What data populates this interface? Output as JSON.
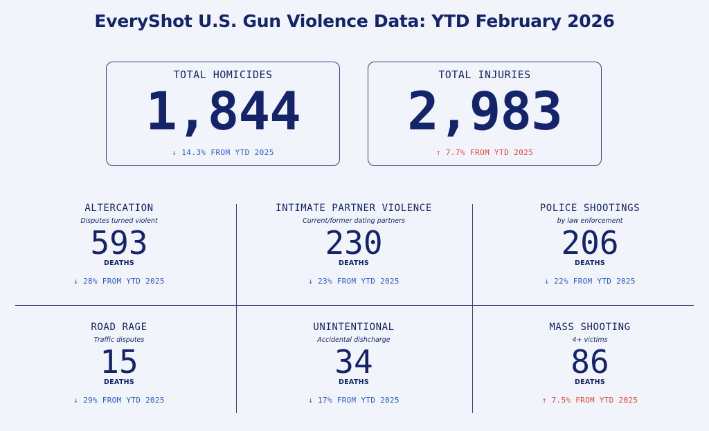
{
  "title": "EveryShot U.S. Gun Violence Data: YTD February 2026",
  "colors": {
    "background": "#f1f4fa",
    "navy": "#14246b",
    "decrease": "#2b5bd6",
    "increase": "#e8473a"
  },
  "totals": [
    {
      "label": "TOTAL HOMICIDES",
      "value": "1,844",
      "change": "↓ 14.3% FROM YTD 2025",
      "direction": "down"
    },
    {
      "label": "TOTAL INJURIES",
      "value": "2,983",
      "change": "↑ 7.7% FROM YTD 2025",
      "direction": "up"
    }
  ],
  "categories": [
    {
      "label": "ALTERCATION",
      "subtitle": "Disputes turned violent",
      "value": "593",
      "unit": "DEATHS",
      "change": "↓ 28% FROM YTD 2025",
      "direction": "down"
    },
    {
      "label": "INTIMATE PARTNER VIOLENCE",
      "subtitle": "Current/former dating partners",
      "value": "230",
      "unit": "DEATHS",
      "change": "↓ 23% FROM YTD 2025",
      "direction": "down"
    },
    {
      "label": "POLICE SHOOTINGS",
      "subtitle": "by law enforcement",
      "value": "206",
      "unit": "DEATHS",
      "change": "↓ 22% FROM YTD 2025",
      "direction": "down"
    },
    {
      "label": "ROAD RAGE",
      "subtitle": "Traffic disputes",
      "value": "15",
      "unit": "DEATHS",
      "change": "↓ 29% FROM YTD 2025",
      "direction": "down"
    },
    {
      "label": "UNINTENTIONAL",
      "subtitle": "Accidental dishcharge",
      "value": "34",
      "unit": "DEATHS",
      "change": "↓ 17% FROM YTD 2025",
      "direction": "down"
    },
    {
      "label": "MASS SHOOTING",
      "subtitle": "4+ victims",
      "value": "86",
      "unit": "DEATHS",
      "change": "↑ 7.5% FROM YTD 2025",
      "direction": "up"
    }
  ]
}
